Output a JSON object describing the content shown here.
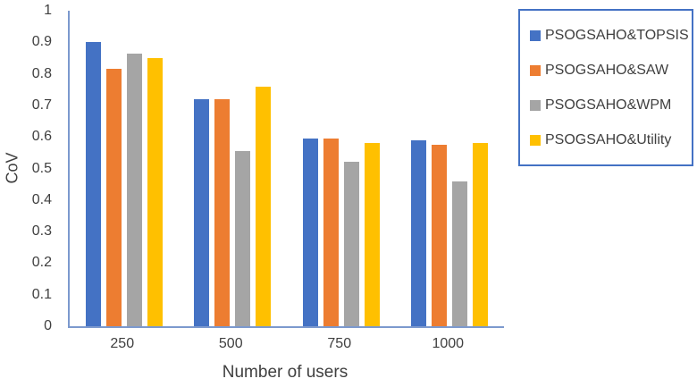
{
  "chart_data": {
    "type": "bar",
    "title": "",
    "xlabel": "Number of users",
    "ylabel": "CoV",
    "categories": [
      "250",
      "500",
      "750",
      "1000"
    ],
    "series": [
      {
        "name": "PSOGSAHO&TOPSIS",
        "color": "#4472C4",
        "values": [
          0.9,
          0.72,
          0.595,
          0.59
        ]
      },
      {
        "name": "PSOGSAHO&SAW",
        "color": "#ED7D31",
        "values": [
          0.815,
          0.72,
          0.595,
          0.575
        ]
      },
      {
        "name": "PSOGSAHO&WPM",
        "color": "#A5A5A5",
        "values": [
          0.865,
          0.555,
          0.52,
          0.46
        ]
      },
      {
        "name": "PSOGSAHO&Utility",
        "color": "#FFC000",
        "values": [
          0.85,
          0.76,
          0.58,
          0.58
        ]
      }
    ],
    "ylim": [
      0,
      1
    ],
    "ytick_labels": [
      "0",
      "0.1",
      "0.2",
      "0.3",
      "0.4",
      "0.5",
      "0.6",
      "0.7",
      "0.8",
      "0.9",
      "1"
    ],
    "grid": false,
    "legend_position": "right"
  },
  "colors": {
    "axis_line": "#7C99CE",
    "legend_border": "#4472C4",
    "text": "#404040",
    "background": "#FFFFFF"
  }
}
